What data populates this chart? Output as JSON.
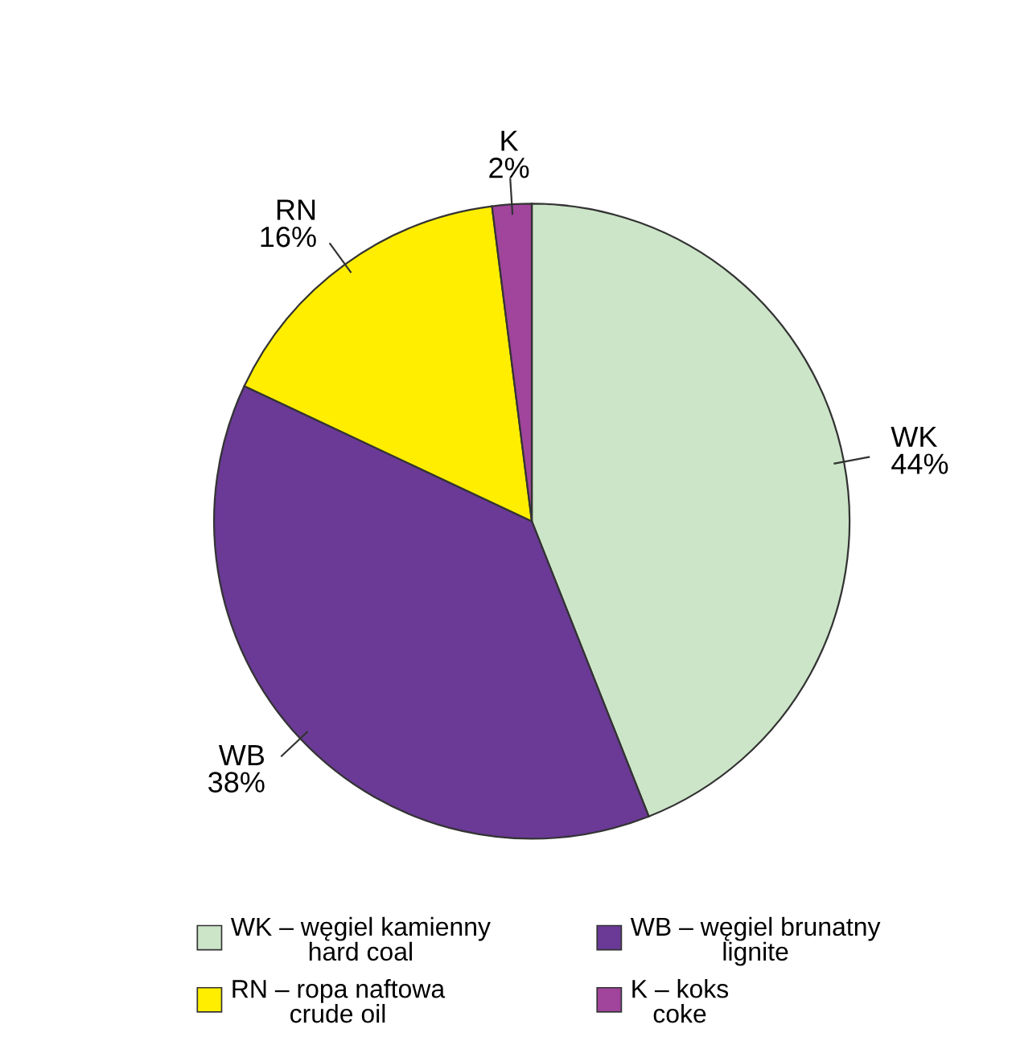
{
  "chart_data": {
    "type": "pie",
    "categories": [
      "WK",
      "WB",
      "RN",
      "K"
    ],
    "values": [
      44,
      38,
      16,
      2
    ],
    "colors": [
      "#cce5c8",
      "#6a3a96",
      "#ffee00",
      "#a0449c"
    ],
    "value_labels": [
      "44%",
      "38%",
      "16%",
      "2%"
    ],
    "annotations": [
      "WK – węgiel kamienny\nhard coal",
      "WB – węgiel brunatny\nlignite",
      "RN – ropa naftowa\ncrude oil",
      "K – koks\ncoke"
    ]
  }
}
